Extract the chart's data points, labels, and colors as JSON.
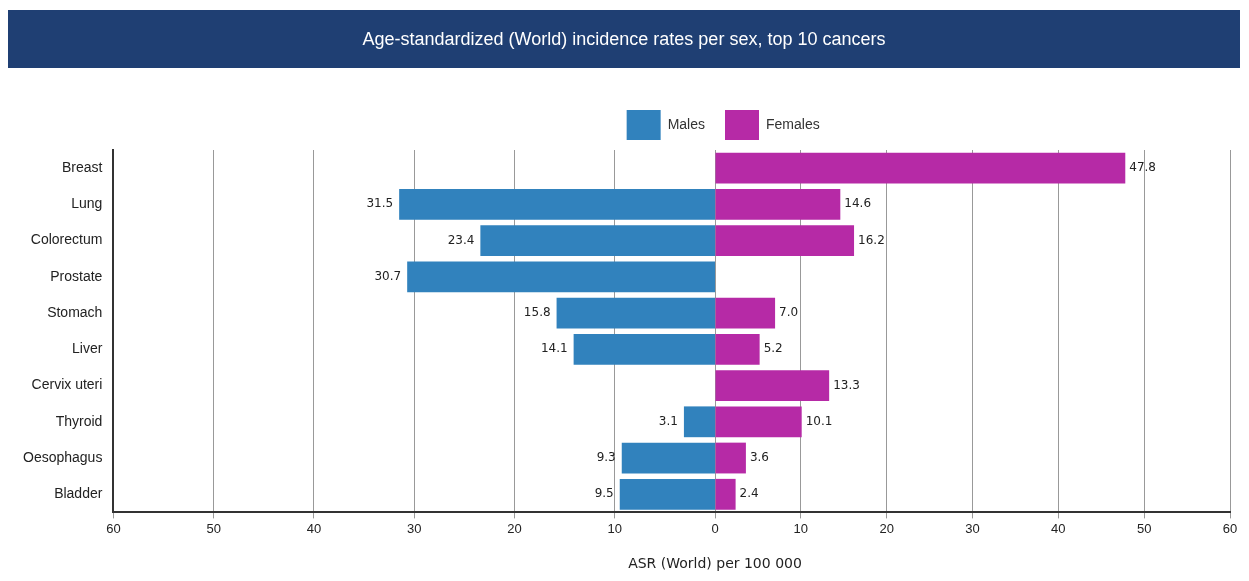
{
  "chart_data": [
    {
      "type": "bar",
      "orientation": "horizontal",
      "title": "Age-standardized (World) incidence rates per sex, top 10 cancers",
      "categories": [
        "Breast",
        "Lung",
        "Colorectum",
        "Prostate",
        "Stomach",
        "Liver",
        "Cervix uteri",
        "Thyroid",
        "Oesophagus",
        "Bladder"
      ],
      "series": [
        {
          "name": "Males",
          "color": "#3182bd",
          "values": [
            null,
            31.5,
            23.4,
            30.7,
            15.8,
            14.1,
            null,
            3.1,
            9.3,
            9.5
          ],
          "value_labels": [
            null,
            "31.5",
            "23.4",
            "30.7",
            "15.8",
            "14.1",
            null,
            "3.1",
            "9.3",
            "9.5"
          ]
        }
      ],
      "xlim": [
        60,
        0
      ],
      "xticks": [
        60,
        50,
        40,
        30,
        20,
        10
      ],
      "grid": "x",
      "legend": "top right"
    },
    {
      "type": "bar",
      "orientation": "horizontal",
      "xlabel": "ASR (World) per 100 000",
      "categories": [
        null,
        null,
        null,
        null,
        null,
        null,
        null,
        null,
        null,
        null
      ],
      "series": [
        {
          "name": "Females",
          "color": "#b62aa6",
          "values": [
            47.8,
            14.6,
            16.2,
            null,
            7.0,
            5.2,
            13.3,
            10.1,
            3.6,
            2.4
          ],
          "value_labels": [
            "47.8",
            "14.6",
            "16.2",
            null,
            "7.0",
            "5.2",
            "13.3",
            "10.1",
            "3.6",
            "2.4"
          ]
        }
      ],
      "xlim": [
        0,
        60
      ],
      "xticks": [
        0,
        10,
        20,
        30,
        40,
        50,
        60
      ],
      "grid": "x",
      "legend": "top left",
      "tick_labels": "x"
    }
  ]
}
